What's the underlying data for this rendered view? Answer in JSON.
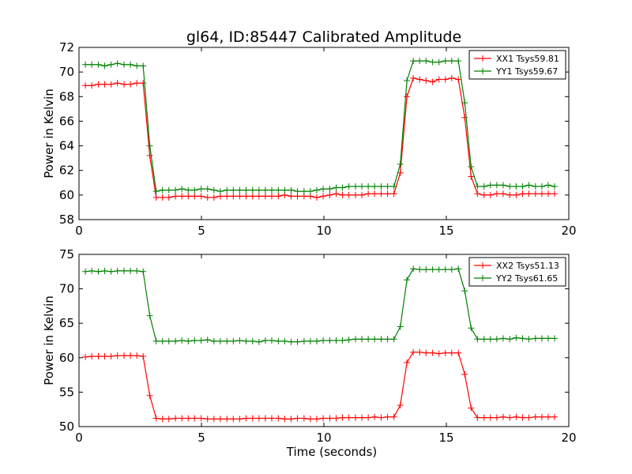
{
  "title": "gl64, ID:85447 Calibrated Amplitude",
  "colors": {
    "red": "#ff0000",
    "green": "#008000"
  },
  "chart_data": [
    {
      "type": "line",
      "title": "gl64, ID:85447 Calibrated Amplitude",
      "xlabel": "",
      "ylabel": "Power in Kelvin",
      "xlim": [
        0,
        20
      ],
      "ylim": [
        58,
        72
      ],
      "xticks": [
        0,
        5,
        10,
        15,
        20
      ],
      "yticks": [
        58,
        60,
        62,
        64,
        66,
        68,
        70,
        72
      ],
      "grid": false,
      "legend_position": "top-right",
      "x": [
        0.26,
        0.52,
        0.79,
        1.05,
        1.31,
        1.57,
        1.84,
        2.1,
        2.36,
        2.62,
        2.89,
        3.15,
        3.41,
        3.67,
        3.94,
        4.2,
        4.46,
        4.72,
        4.99,
        5.25,
        5.51,
        5.77,
        6.04,
        6.3,
        6.56,
        6.82,
        7.09,
        7.35,
        7.61,
        7.87,
        8.14,
        8.4,
        8.66,
        8.92,
        9.19,
        9.45,
        9.71,
        9.97,
        10.24,
        10.5,
        10.76,
        11.02,
        11.29,
        11.55,
        11.81,
        12.07,
        12.34,
        12.6,
        12.86,
        13.12,
        13.39,
        13.65,
        13.91,
        14.17,
        14.44,
        14.7,
        14.96,
        15.22,
        15.49,
        15.75,
        16.01,
        16.27,
        16.54,
        16.8,
        17.06,
        17.32,
        17.59,
        17.85,
        18.11,
        18.37,
        18.64,
        18.9,
        19.16,
        19.42
      ],
      "series": [
        {
          "name": "XX1 Tsys59.81",
          "color": "#ff0000",
          "values": [
            68.9,
            68.9,
            69.0,
            69.0,
            69.0,
            69.1,
            69.0,
            69.0,
            69.1,
            69.1,
            63.2,
            59.8,
            59.8,
            59.8,
            59.9,
            59.9,
            59.9,
            59.9,
            59.9,
            59.8,
            59.8,
            59.9,
            59.9,
            59.9,
            59.9,
            59.9,
            59.9,
            59.9,
            59.9,
            59.9,
            59.9,
            60.0,
            59.9,
            59.9,
            59.9,
            59.9,
            59.8,
            59.9,
            60.0,
            60.1,
            60.0,
            60.0,
            60.0,
            60.0,
            60.1,
            60.1,
            60.1,
            60.1,
            60.1,
            61.8,
            68.0,
            69.5,
            69.4,
            69.3,
            69.2,
            69.4,
            69.4,
            69.5,
            69.4,
            66.3,
            61.5,
            60.1,
            60.0,
            60.0,
            60.1,
            60.1,
            60.0,
            60.0,
            60.1,
            60.1,
            60.1,
            60.1,
            60.1,
            60.1
          ]
        },
        {
          "name": "YY1 Tsys59.67",
          "color": "#008000",
          "values": [
            70.6,
            70.6,
            70.6,
            70.5,
            70.6,
            70.7,
            70.6,
            70.6,
            70.5,
            70.5,
            64.0,
            60.3,
            60.4,
            60.4,
            60.4,
            60.5,
            60.4,
            60.4,
            60.5,
            60.5,
            60.4,
            60.3,
            60.4,
            60.4,
            60.4,
            60.4,
            60.4,
            60.4,
            60.4,
            60.4,
            60.4,
            60.4,
            60.4,
            60.3,
            60.3,
            60.3,
            60.4,
            60.5,
            60.5,
            60.6,
            60.6,
            60.7,
            60.7,
            60.7,
            60.7,
            60.7,
            60.7,
            60.7,
            60.7,
            62.5,
            69.3,
            70.9,
            70.9,
            70.9,
            70.8,
            70.8,
            70.9,
            70.9,
            70.9,
            67.5,
            62.3,
            60.7,
            60.7,
            60.8,
            60.8,
            60.8,
            60.7,
            60.7,
            60.7,
            60.8,
            60.7,
            60.7,
            60.8,
            60.7
          ]
        }
      ]
    },
    {
      "type": "line",
      "title": "",
      "xlabel": "Time (seconds)",
      "ylabel": "Power in Kelvin",
      "xlim": [
        0,
        20
      ],
      "ylim": [
        50,
        75
      ],
      "xticks": [
        0,
        5,
        10,
        15,
        20
      ],
      "yticks": [
        50,
        55,
        60,
        65,
        70,
        75
      ],
      "grid": false,
      "legend_position": "top-right",
      "x": [
        0.26,
        0.52,
        0.79,
        1.05,
        1.31,
        1.57,
        1.84,
        2.1,
        2.36,
        2.62,
        2.89,
        3.15,
        3.41,
        3.67,
        3.94,
        4.2,
        4.46,
        4.72,
        4.99,
        5.25,
        5.51,
        5.77,
        6.04,
        6.3,
        6.56,
        6.82,
        7.09,
        7.35,
        7.61,
        7.87,
        8.14,
        8.4,
        8.66,
        8.92,
        9.19,
        9.45,
        9.71,
        9.97,
        10.24,
        10.5,
        10.76,
        11.02,
        11.29,
        11.55,
        11.81,
        12.07,
        12.34,
        12.6,
        12.86,
        13.12,
        13.39,
        13.65,
        13.91,
        14.17,
        14.44,
        14.7,
        14.96,
        15.22,
        15.49,
        15.75,
        16.01,
        16.27,
        16.54,
        16.8,
        17.06,
        17.32,
        17.59,
        17.85,
        18.11,
        18.37,
        18.64,
        18.9,
        19.16,
        19.42
      ],
      "series": [
        {
          "name": "XX2 Tsys51.13",
          "color": "#ff0000",
          "values": [
            60.1,
            60.2,
            60.2,
            60.2,
            60.2,
            60.3,
            60.3,
            60.3,
            60.3,
            60.2,
            54.5,
            51.2,
            51.1,
            51.1,
            51.2,
            51.2,
            51.2,
            51.2,
            51.2,
            51.1,
            51.1,
            51.1,
            51.1,
            51.1,
            51.1,
            51.2,
            51.2,
            51.2,
            51.2,
            51.2,
            51.2,
            51.1,
            51.1,
            51.2,
            51.2,
            51.1,
            51.1,
            51.2,
            51.2,
            51.2,
            51.3,
            51.3,
            51.3,
            51.3,
            51.3,
            51.4,
            51.3,
            51.4,
            51.4,
            53.1,
            59.3,
            60.8,
            60.8,
            60.7,
            60.7,
            60.6,
            60.7,
            60.7,
            60.7,
            57.6,
            52.7,
            51.3,
            51.3,
            51.3,
            51.3,
            51.4,
            51.3,
            51.4,
            51.3,
            51.3,
            51.4,
            51.4,
            51.4,
            51.4
          ]
        },
        {
          "name": "YY2 Tsys61.65",
          "color": "#008000",
          "values": [
            72.5,
            72.6,
            72.5,
            72.6,
            72.5,
            72.6,
            72.6,
            72.6,
            72.6,
            72.5,
            66.1,
            62.4,
            62.4,
            62.4,
            62.4,
            62.5,
            62.4,
            62.5,
            62.5,
            62.6,
            62.4,
            62.4,
            62.4,
            62.4,
            62.5,
            62.4,
            62.4,
            62.3,
            62.5,
            62.5,
            62.4,
            62.4,
            62.3,
            62.3,
            62.4,
            62.4,
            62.4,
            62.5,
            62.5,
            62.5,
            62.5,
            62.6,
            62.7,
            62.7,
            62.7,
            62.7,
            62.7,
            62.7,
            62.7,
            64.5,
            71.3,
            72.9,
            72.8,
            72.8,
            72.8,
            72.8,
            72.8,
            72.8,
            72.9,
            69.7,
            64.3,
            62.7,
            62.7,
            62.7,
            62.7,
            62.8,
            62.7,
            62.9,
            62.8,
            62.7,
            62.8,
            62.8,
            62.8,
            62.8
          ]
        }
      ]
    }
  ]
}
